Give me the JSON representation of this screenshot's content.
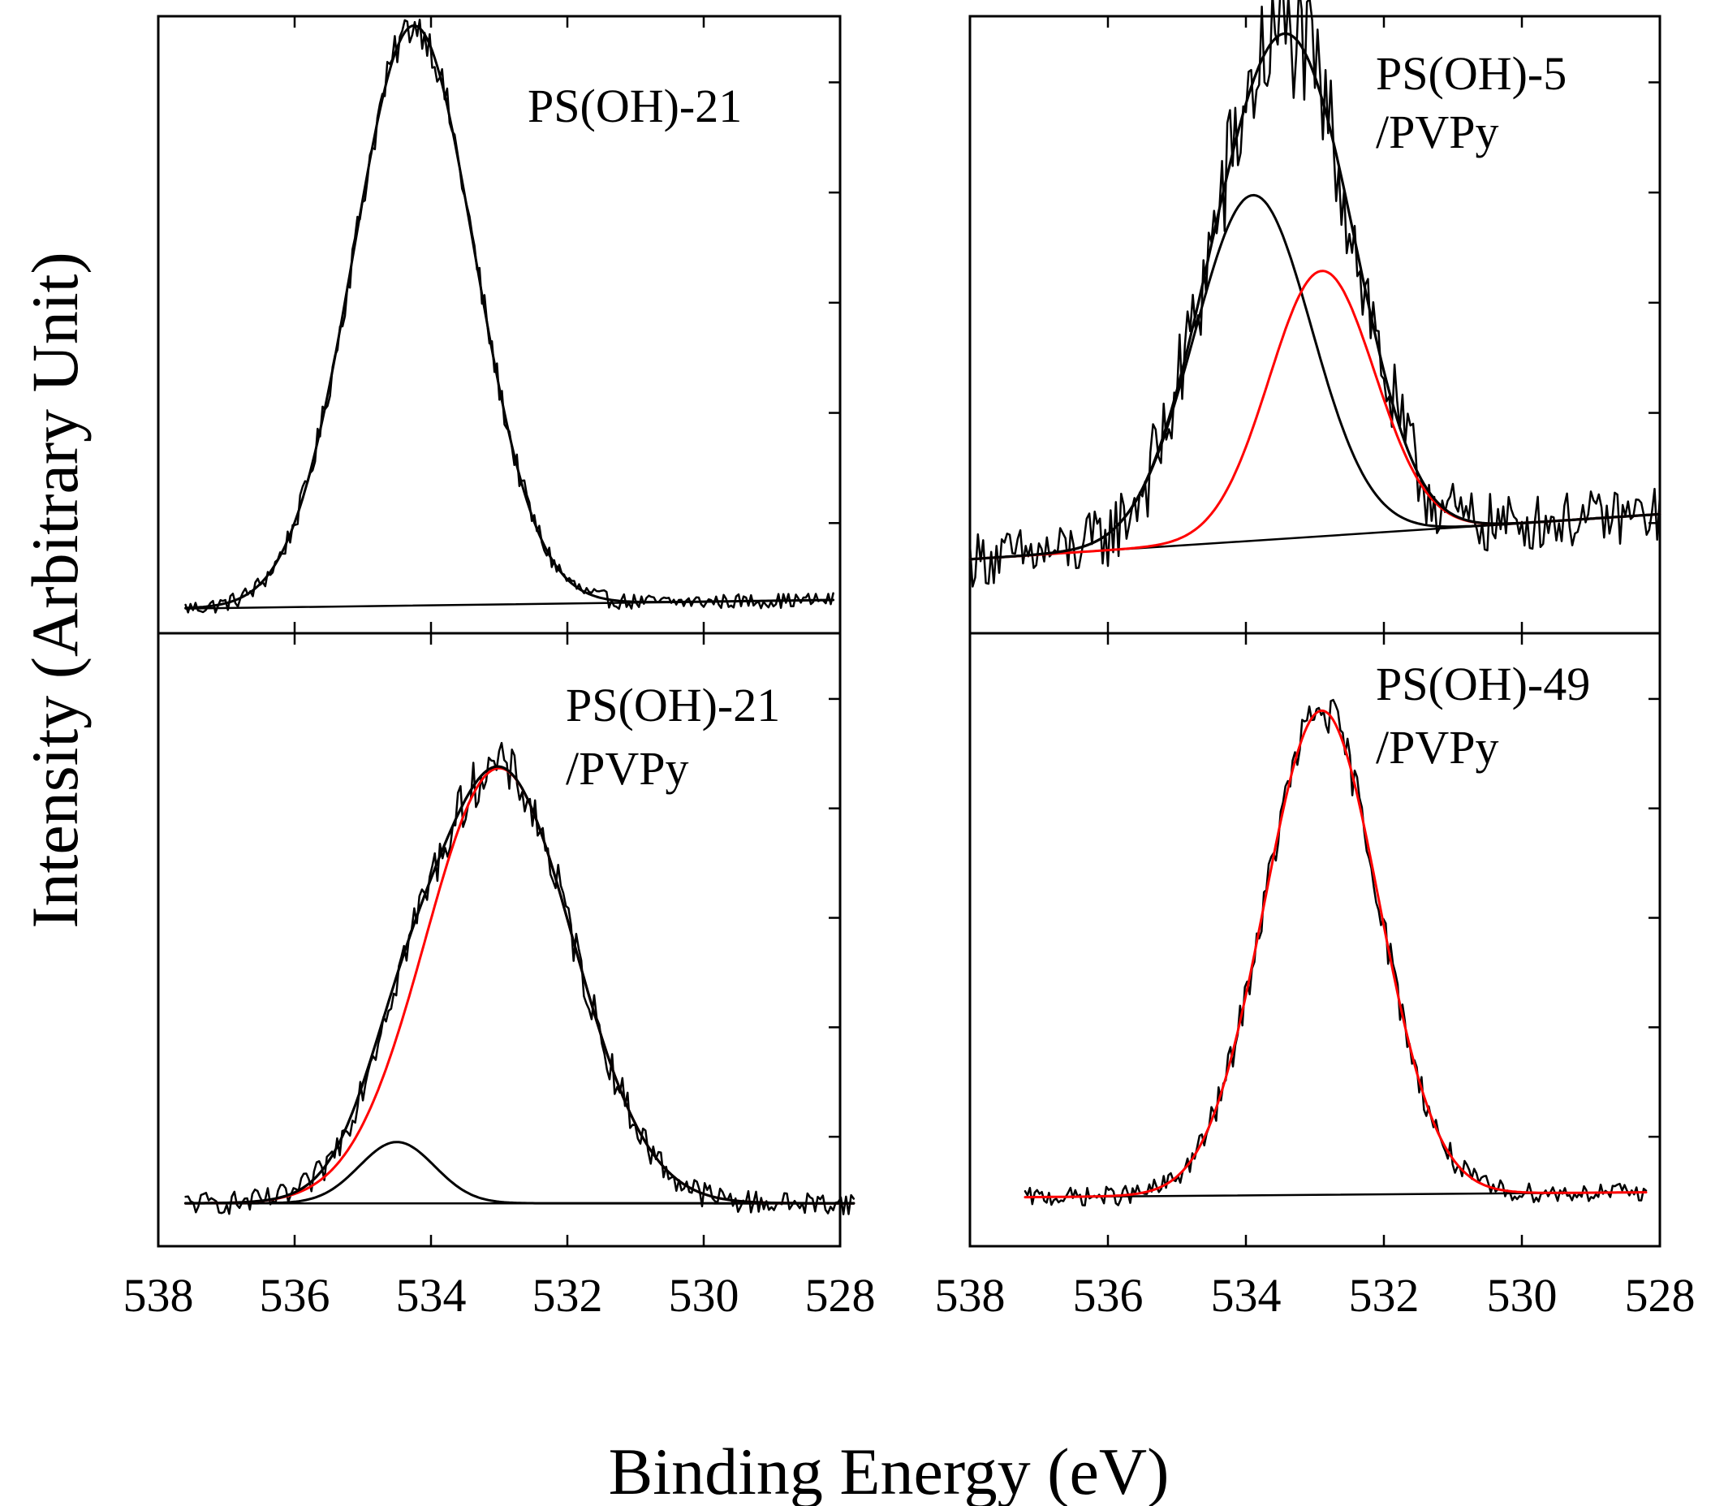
{
  "figure": {
    "ylabel": "Intensity (Arbitrary Unit)",
    "xlabel": "Binding Energy (eV)"
  },
  "chart_data": [
    {
      "type": "line",
      "panel": "top-left",
      "label_lines": [
        "PS(OH)-21"
      ],
      "xlim": [
        538,
        528
      ],
      "x_ticks": [
        538,
        536,
        534,
        532,
        530,
        528
      ],
      "x_tick_labels_shown": false,
      "ylim": [
        0,
        100
      ],
      "baseline": [
        [
          537.6,
          4.0
        ],
        [
          528.1,
          5.4
        ]
      ],
      "components": [
        {
          "center": 534.25,
          "height": 94,
          "fwhm": 2.1,
          "color": "#000000"
        }
      ],
      "envelope_color": "#000000",
      "raw_noise": 1.2,
      "raw_color": "#000000"
    },
    {
      "type": "line",
      "panel": "top-right",
      "label_lines": [
        "PS(OH)-5",
        "/PVPy"
      ],
      "xlim": [
        538,
        528
      ],
      "x_ticks": [
        538,
        536,
        534,
        532,
        530,
        528
      ],
      "x_tick_labels_shown": false,
      "ylim": [
        0,
        100
      ],
      "baseline": [
        [
          538,
          12.0
        ],
        [
          528,
          19.3
        ]
      ],
      "components": [
        {
          "center": 533.9,
          "height": 56,
          "fwhm": 2.0,
          "color": "#000000"
        },
        {
          "center": 532.9,
          "height": 43,
          "fwhm": 1.8,
          "color": "#ff0000"
        }
      ],
      "envelope_color": "#000000",
      "raw_noise": 4.5,
      "raw_color": "#000000"
    },
    {
      "type": "line",
      "panel": "bottom-left",
      "label_lines": [
        "PS(OH)-21",
        "/PVPy"
      ],
      "xlim": [
        538,
        528
      ],
      "x_ticks": [
        538,
        536,
        534,
        532,
        530,
        528
      ],
      "x_tick_labels": [
        "538",
        "536",
        "534",
        "532",
        "530",
        "528"
      ],
      "ylim": [
        0,
        100
      ],
      "baseline": [
        [
          537.6,
          7.0
        ],
        [
          527.8,
          7.0
        ]
      ],
      "components": [
        {
          "center": 534.5,
          "height": 10,
          "fwhm": 1.3,
          "color": "#000000"
        },
        {
          "center": 533.0,
          "height": 71,
          "fwhm": 2.55,
          "color": "#ff0000"
        }
      ],
      "envelope_color": "#000000",
      "raw_noise": 1.8,
      "raw_color": "#000000"
    },
    {
      "type": "line",
      "panel": "bottom-right",
      "label_lines": [
        "PS(OH)-49",
        "/PVPy"
      ],
      "xlim": [
        538,
        528
      ],
      "x_ticks": [
        538,
        536,
        534,
        532,
        530,
        528
      ],
      "x_tick_labels": [
        "538",
        "536",
        "534",
        "532",
        "530",
        "528"
      ],
      "ylim": [
        0,
        100
      ],
      "baseline": [
        [
          537.2,
          8.0
        ],
        [
          528.2,
          8.8
        ]
      ],
      "components": [
        {
          "center": 532.9,
          "height": 79,
          "fwhm": 1.95,
          "color": "#ff0000"
        }
      ],
      "envelope_color": "#ff0000",
      "raw_noise": 1.5,
      "raw_color": "#000000"
    }
  ]
}
